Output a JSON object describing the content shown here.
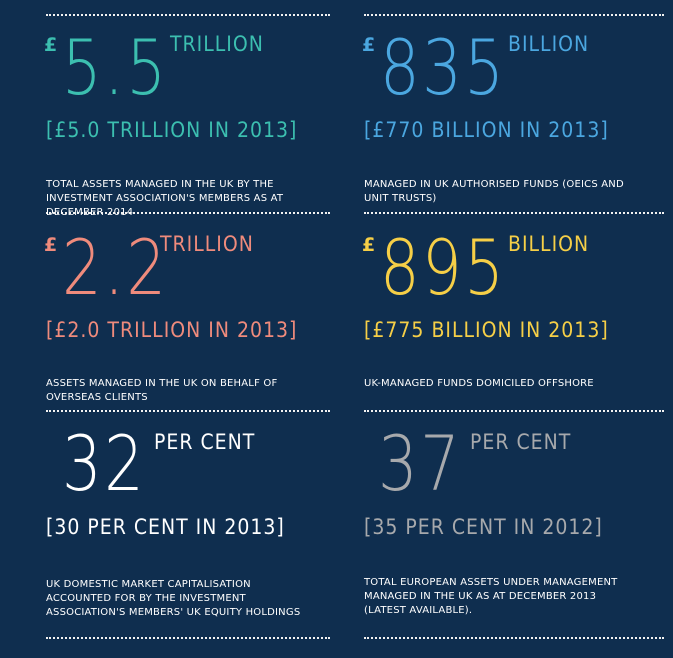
{
  "stats": [
    {
      "currency": "£",
      "value": "5.5",
      "unit": "TRILLION",
      "comparison": "[£5.0 TRILLION IN 2013]",
      "description": "TOTAL ASSETS MANAGED IN THE UK BY THE INVESTMENT ASSOCIATION'S MEMBERS AS AT DECEMBER 2014",
      "color": "#3cbfb0"
    },
    {
      "currency": "£",
      "value": "835",
      "unit": "BILLION",
      "comparison": "[£770 BILLION IN 2013]",
      "description": "MANAGED IN UK AUTHORISED FUNDS (OEICS AND UNIT TRUSTS)",
      "color": "#4ba7e0"
    },
    {
      "currency": "£",
      "value": "2.2",
      "unit": "TRILLION",
      "comparison": "[£2.0 TRILLION IN 2013]",
      "description": "ASSETS MANAGED IN THE UK ON BEHALF OF OVERSEAS CLIENTS",
      "color": "#ef8b7c"
    },
    {
      "currency": "£",
      "value": "895",
      "unit": "BILLION",
      "comparison": "[£775 BILLION IN 2013]",
      "description": "UK-MANAGED FUNDS DOMICILED OFFSHORE",
      "color": "#f6cf47"
    },
    {
      "currency": "",
      "value": "32",
      "unit": "PER CENT",
      "comparison": "[30 PER CENT IN 2013]",
      "description": "UK DOMESTIC MARKET CAPITALISATION ACCOUNTED FOR BY THE INVESTMENT ASSOCIATION'S MEMBERS' UK EQUITY HOLDINGS",
      "color": "#ffffff"
    },
    {
      "currency": "",
      "value": "37",
      "unit": "PER CENT",
      "comparison": "[35 PER CENT IN 2012]",
      "description": "TOTAL EUROPEAN ASSETS UNDER MANAGEMENT MANAGED IN THE UK AS AT DECEMBER 2013 (LATEST AVAILABLE).",
      "color": "#a7a9ac"
    }
  ]
}
